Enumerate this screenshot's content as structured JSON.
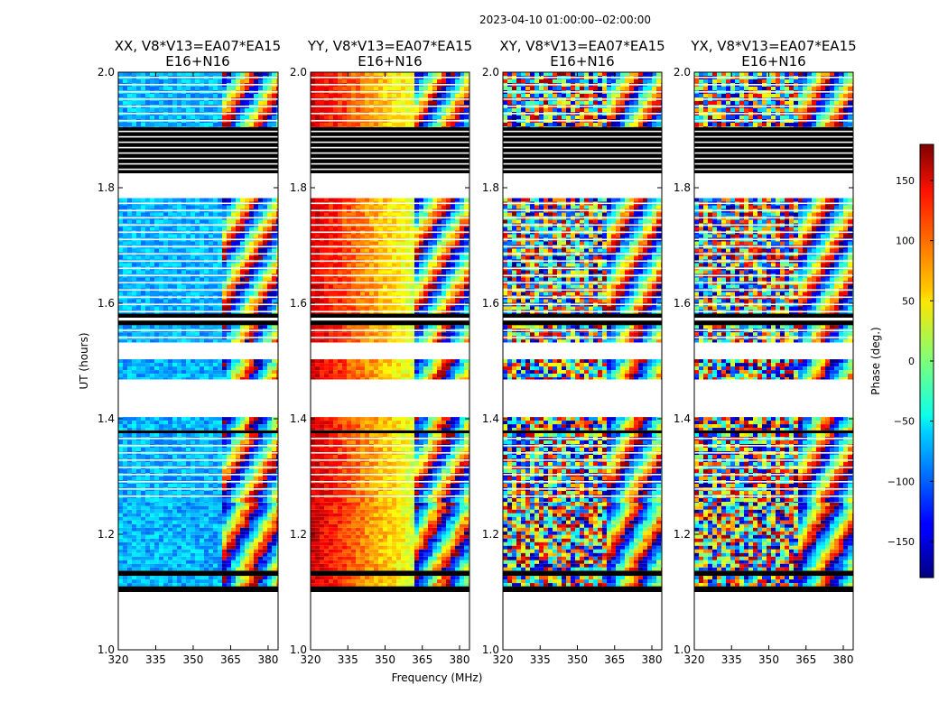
{
  "chart_data": {
    "type": "heatmap",
    "suptitle": "2023-04-10  01:00:00--02:00:00",
    "xlabel": "Frequency (MHz)",
    "ylabel": "UT (hours)",
    "xlim": [
      320,
      384
    ],
    "ylim": [
      1.0,
      2.0
    ],
    "xticks": [
      "320",
      "335",
      "350",
      "365",
      "380"
    ],
    "yticks": [
      "1.0",
      "1.2",
      "1.4",
      "1.6",
      "1.8",
      "2.0"
    ],
    "panels": [
      {
        "title_line1": "XX, V8*V13=EA07*EA15",
        "title_line2": "E16+N16",
        "base_phase": -72,
        "gradient": 0,
        "noise": 26
      },
      {
        "title_line1": "YY, V8*V13=EA07*EA15",
        "title_line2": "E16+N16",
        "base_phase": 150,
        "gradient": -190,
        "noise": 22
      },
      {
        "title_line1": "XY, V8*V13=EA07*EA15",
        "title_line2": "E16+N16",
        "base_phase": 0,
        "gradient": 0,
        "noise": 180
      },
      {
        "title_line1": "YX, V8*V13=EA07*EA15",
        "title_line2": "E16+N16",
        "base_phase": 0,
        "gradient": 0,
        "noise": 180
      }
    ],
    "colorbar": {
      "label": "Phase (deg.)",
      "range": [
        -180,
        180
      ],
      "ticks": [
        "150",
        "100",
        "50",
        "0",
        "−50",
        "−100",
        "−150"
      ],
      "tick_values": [
        150,
        100,
        50,
        0,
        -50,
        -100,
        -150
      ],
      "colormap": "jet"
    },
    "time_segments_hours": [
      {
        "t0": 1.1,
        "t1": 1.11,
        "kind": "flagged"
      },
      {
        "t0": 1.11,
        "t1": 1.128,
        "kind": "data"
      },
      {
        "t0": 1.128,
        "t1": 1.137,
        "kind": "flagged"
      },
      {
        "t0": 1.137,
        "t1": 1.255,
        "kind": "data"
      },
      {
        "t0": 1.255,
        "t1": 1.375,
        "kind": "data_striped"
      },
      {
        "t0": 1.375,
        "t1": 1.38,
        "kind": "flagged"
      },
      {
        "t0": 1.38,
        "t1": 1.403,
        "kind": "data"
      },
      {
        "t0": 1.468,
        "t1": 1.503,
        "kind": "data"
      },
      {
        "t0": 1.532,
        "t1": 1.562,
        "kind": "data_striped"
      },
      {
        "t0": 1.562,
        "t1": 1.57,
        "kind": "flagged"
      },
      {
        "t0": 1.575,
        "t1": 1.582,
        "kind": "flagged"
      },
      {
        "t0": 1.582,
        "t1": 1.782,
        "kind": "data_striped"
      },
      {
        "t0": 1.825,
        "t1": 1.905,
        "kind": "flagged_striped"
      },
      {
        "t0": 1.905,
        "t1": 2.0,
        "kind": "data_striped"
      }
    ]
  }
}
